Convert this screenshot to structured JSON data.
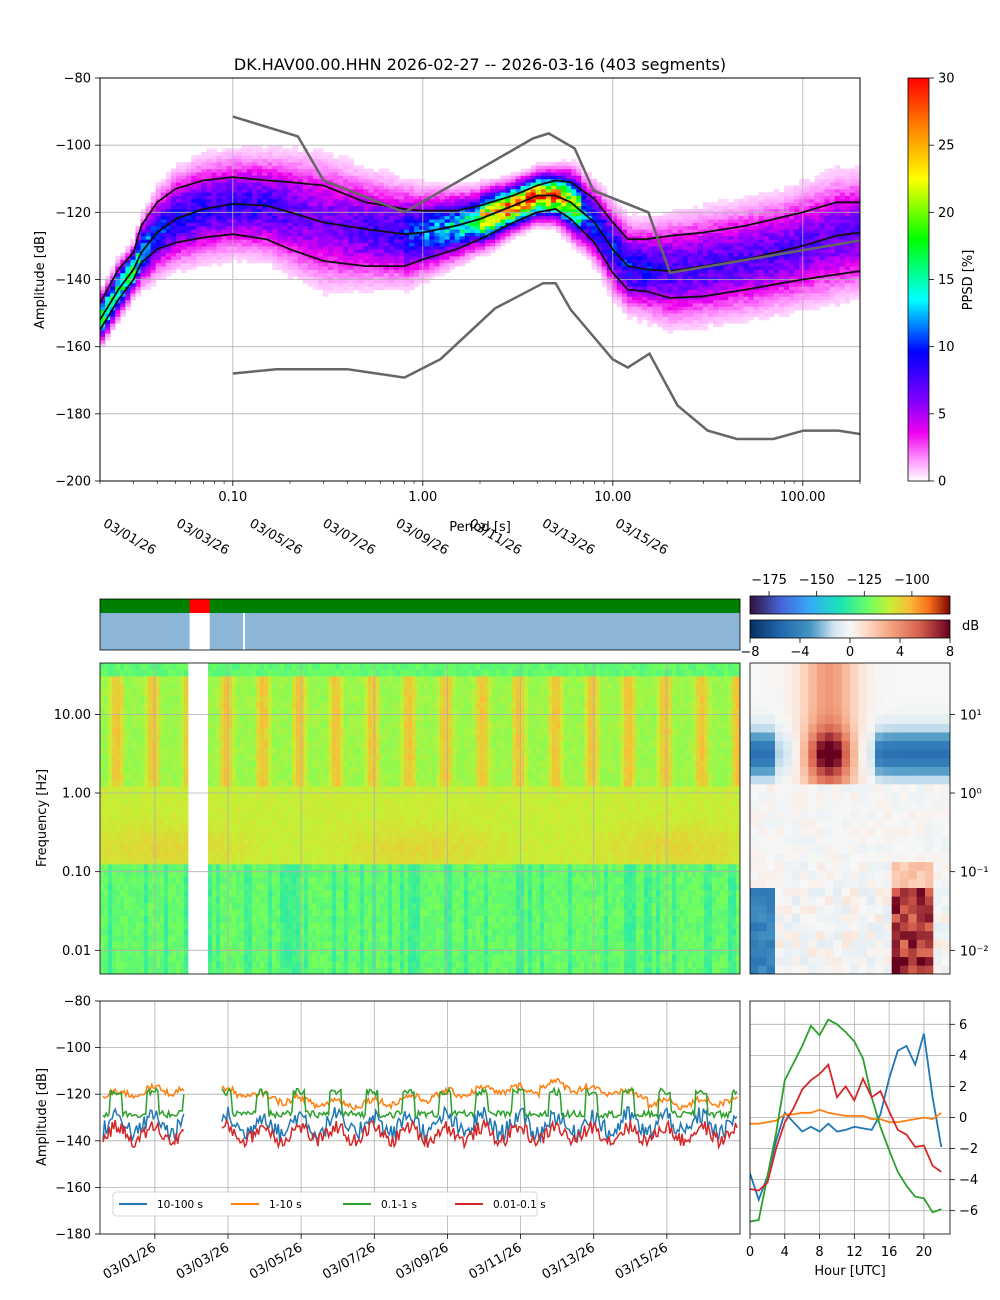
{
  "figure": {
    "title": "DK.HAV00.00.HHN   2026-02-27 -- 2026-03-16  (403 segments)"
  },
  "chart_data": [
    {
      "id": "ppsd",
      "type": "heatmap",
      "title": "DK.HAV00.00.HHN   2026-02-27 -- 2026-03-16  (403 segments)",
      "xlabel": "Period [s]",
      "ylabel": "Amplitude [dB]",
      "xscale": "log",
      "xlim": [
        0.02,
        200
      ],
      "ylim": [
        -200,
        -80
      ],
      "xticks": [
        0.1,
        1,
        10,
        100
      ],
      "xtick_labels": [
        "0.10",
        "1.00",
        "10.00",
        "100.00"
      ],
      "yticks": [
        -200,
        -180,
        -160,
        -140,
        -120,
        -100,
        -80
      ],
      "ytick_labels": [
        "−200",
        "−180",
        "−160",
        "−140",
        "−120",
        "−100",
        "−80"
      ],
      "grid": true,
      "colorbar": {
        "label": "PPSD [%]",
        "range": [
          0,
          30
        ],
        "ticks": [
          0,
          5,
          10,
          15,
          20,
          25,
          30
        ],
        "tick_labels": [
          "0",
          "5",
          "10",
          "15",
          "20",
          "25",
          "30"
        ]
      },
      "percentiles": [
        {
          "name": "mean",
          "period": [
            0.02,
            0.025,
            0.03,
            0.033,
            0.04,
            0.05,
            0.07,
            0.1,
            0.15,
            0.2,
            0.3,
            0.5,
            0.8,
            1.0,
            1.5,
            2.0,
            3.0,
            4.0,
            5.0,
            6.0,
            8.0,
            10.0,
            12.0,
            15.0,
            20.0,
            30.0,
            50.0,
            100.0,
            150.0,
            200.0
          ],
          "db": [
            -152,
            -143,
            -137,
            -132,
            -126,
            -122,
            -119,
            -117.5,
            -118,
            -120,
            -123,
            -125,
            -126.5,
            -126,
            -124,
            -122,
            -118,
            -115,
            -115,
            -117,
            -123,
            -131,
            -136,
            -137,
            -137.5,
            -136,
            -134,
            -130,
            -127,
            -126
          ]
        },
        {
          "name": "p10",
          "period": [
            0.02,
            0.025,
            0.03,
            0.033,
            0.04,
            0.05,
            0.07,
            0.1,
            0.15,
            0.2,
            0.3,
            0.5,
            0.8,
            1.0,
            1.5,
            2.0,
            3.0,
            4.0,
            5.0,
            6.0,
            8.0,
            10.0,
            12.0,
            15.0,
            20.0,
            30.0,
            50.0,
            100.0,
            150.0,
            200.0
          ],
          "db": [
            -147,
            -137,
            -132,
            -124,
            -117,
            -113,
            -110.5,
            -109.5,
            -110.5,
            -111,
            -112,
            -117,
            -119,
            -119.5,
            -119.5,
            -118,
            -115,
            -112,
            -110.5,
            -111,
            -116,
            -123,
            -128,
            -128,
            -127,
            -126,
            -124,
            -120,
            -117,
            -117
          ]
        },
        {
          "name": "p90",
          "period": [
            0.02,
            0.025,
            0.03,
            0.033,
            0.04,
            0.05,
            0.07,
            0.1,
            0.15,
            0.2,
            0.3,
            0.5,
            0.8,
            1.0,
            1.5,
            2.0,
            3.0,
            4.0,
            5.0,
            6.0,
            8.0,
            10.0,
            12.0,
            15.0,
            20.0,
            30.0,
            50.0,
            100.0,
            150.0,
            200.0
          ],
          "db": [
            -155,
            -146,
            -140,
            -135,
            -131,
            -129,
            -127.5,
            -126.5,
            -128,
            -131,
            -134.5,
            -136,
            -136,
            -134,
            -131,
            -128,
            -123,
            -120,
            -119,
            -122,
            -129,
            -138,
            -143,
            -143.5,
            -145.5,
            -145,
            -143,
            -140,
            -138.5,
            -137.5
          ]
        },
        {
          "name": "NHNM",
          "period": [
            0.1,
            0.22,
            0.3,
            0.8,
            3.8,
            4.6,
            6.3,
            7.9,
            15.4,
            20.0,
            354.8
          ],
          "db": [
            -91.5,
            -97.4,
            -110.5,
            -120,
            -98,
            -96.5,
            -101,
            -113.5,
            -120,
            -138,
            -126
          ]
        },
        {
          "name": "NLNM",
          "period": [
            0.1,
            0.17,
            0.4,
            0.8,
            1.24,
            2.4,
            4.3,
            5.0,
            6.0,
            10.0,
            12.0,
            15.6,
            21.9,
            31.6,
            45.0,
            70.0,
            101.0,
            154.0,
            200.0
          ],
          "db": [
            -168,
            -166.7,
            -166.7,
            -169.2,
            -163.7,
            -148.6,
            -141.1,
            -141.1,
            -149,
            -163.8,
            -166.2,
            -162.1,
            -177.5,
            -185,
            -187.5,
            -187.5,
            -185,
            -185,
            -186
          ]
        }
      ]
    },
    {
      "id": "spectrogram",
      "type": "heatmap",
      "ylabel": "Frequency [Hz]",
      "yscale": "log",
      "ylim": [
        0.005,
        45
      ],
      "yticks": [
        0.01,
        0.1,
        1,
        10
      ],
      "ytick_labels": [
        "0.01",
        "0.10",
        "1.00",
        "10.00"
      ],
      "x_dates": [
        "03/01/26",
        "03/03/26",
        "03/05/26",
        "03/07/26",
        "03/09/26",
        "03/11/26",
        "03/13/26",
        "03/15/26"
      ],
      "xlim_days": [
        0,
        17.5
      ],
      "colorbar": {
        "range": [
          -185,
          -80
        ],
        "ticks": [
          -175,
          -150,
          -125,
          -100
        ],
        "tick_labels": [
          "−175",
          "−150",
          "−125",
          "−100"
        ]
      },
      "availability": {
        "data_gap_days": [
          2.45,
          3.0
        ],
        "processed_gap_days": [
          3.5,
          3.95
        ]
      },
      "grid": true
    },
    {
      "id": "hour-deviation",
      "type": "heatmap",
      "colorbar": {
        "label": "dB",
        "range": [
          -8,
          8
        ],
        "ticks": [
          -8,
          -4,
          0,
          4,
          8
        ],
        "tick_labels": [
          "−8",
          "−4",
          "0",
          "4",
          "8"
        ]
      },
      "yscale": "log",
      "ytick_labels": [
        "10¹",
        "10⁰",
        "10⁻¹",
        "10⁻²"
      ]
    },
    {
      "id": "band-timeseries",
      "type": "line",
      "ylabel": "Amplitude [dB]",
      "ylim": [
        -180,
        -80
      ],
      "yticks": [
        -180,
        -160,
        -140,
        -120,
        -100,
        -80
      ],
      "ytick_labels": [
        "−180",
        "−160",
        "−140",
        "−120",
        "−100",
        "−80"
      ],
      "x_dates": [
        "03/01/26",
        "03/03/26",
        "03/05/26",
        "03/07/26",
        "03/09/26",
        "03/11/26",
        "03/13/26",
        "03/15/26"
      ],
      "gap_days": [
        2.45,
        3.0
      ],
      "legend": "lower-left",
      "series": [
        {
          "name": "10-100 s",
          "color": "#1f77b4",
          "mean_db": -133,
          "amplitude_db": 4,
          "noise_db": 8
        },
        {
          "name": "1-10 s",
          "color": "#ff7f0e",
          "mean_db": -121,
          "amplitude_db": 1.5,
          "noise_db": 3
        },
        {
          "name": "0.1-1 s",
          "color": "#2ca02c",
          "mean_db": -125,
          "amplitude_db": 6,
          "noise_db": 3
        },
        {
          "name": "0.01-0.1 s",
          "color": "#d62728",
          "mean_db": -137,
          "amplitude_db": 3,
          "noise_db": 6
        }
      ]
    },
    {
      "id": "hourly-deviation",
      "type": "line",
      "xlabel": "Hour [UTC]",
      "xlim": [
        0,
        23
      ],
      "xticks": [
        0,
        4,
        8,
        12,
        16,
        20
      ],
      "ylim": [
        -7.5,
        7.5
      ],
      "yticks": [
        -6,
        -4,
        -2,
        0,
        2,
        4,
        6
      ],
      "ytick_labels": [
        "−6",
        "−4",
        "−2",
        "0",
        "2",
        "4",
        "6"
      ],
      "series": [
        {
          "name": "10-100 s",
          "color": "#1f77b4",
          "x": [
            0,
            1,
            2,
            3,
            4,
            5,
            6,
            7,
            8,
            9,
            10,
            11,
            12,
            13,
            14,
            15,
            16,
            17,
            18,
            19,
            20,
            21,
            22
          ],
          "values": [
            -3.6,
            -5.3,
            -3.8,
            -1.5,
            0.3,
            -0.3,
            -0.9,
            -0.6,
            -0.9,
            -0.4,
            -0.9,
            -0.8,
            -0.6,
            -0.7,
            -0.8,
            0.2,
            2.5,
            4.3,
            4.6,
            3.4,
            5.4,
            1.3,
            -1.9
          ]
        },
        {
          "name": "1-10 s",
          "color": "#ff7f0e",
          "x": [
            0,
            1,
            2,
            3,
            4,
            5,
            6,
            7,
            8,
            9,
            10,
            11,
            12,
            13,
            14,
            15,
            16,
            17,
            18,
            19,
            20,
            21,
            22
          ],
          "values": [
            -0.4,
            -0.4,
            -0.3,
            -0.2,
            0.2,
            0.2,
            0.3,
            0.3,
            0.5,
            0.3,
            0.2,
            0.1,
            0.1,
            0.1,
            -0.1,
            -0.1,
            -0.3,
            -0.3,
            -0.2,
            -0.1,
            0.0,
            -0.1,
            0.3
          ]
        },
        {
          "name": "0.1-1 s",
          "color": "#2ca02c",
          "x": [
            0,
            1,
            2,
            3,
            4,
            5,
            6,
            7,
            8,
            9,
            10,
            11,
            12,
            13,
            14,
            15,
            16,
            17,
            18,
            19,
            20,
            21,
            22
          ],
          "values": [
            -6.7,
            -6.6,
            -3.8,
            -1.0,
            2.4,
            3.5,
            4.6,
            5.9,
            5.3,
            6.3,
            6.0,
            5.5,
            4.9,
            3.8,
            1.3,
            -0.6,
            -2.1,
            -3.5,
            -4.4,
            -5.1,
            -5.2,
            -6.1,
            -5.9
          ]
        },
        {
          "name": "0.01-0.1 s",
          "color": "#d62728",
          "x": [
            0,
            1,
            2,
            3,
            4,
            5,
            6,
            7,
            8,
            9,
            10,
            11,
            12,
            13,
            14,
            15,
            16,
            17,
            18,
            19,
            20,
            21,
            22
          ],
          "values": [
            -4.6,
            -4.7,
            -4.2,
            -2.0,
            -0.3,
            0.6,
            1.8,
            2.4,
            2.8,
            3.4,
            1.3,
            2.0,
            1.1,
            2.5,
            1.3,
            1.7,
            0.4,
            -0.8,
            -1.1,
            -1.9,
            -1.8,
            -3.1,
            -3.5
          ]
        }
      ]
    }
  ]
}
